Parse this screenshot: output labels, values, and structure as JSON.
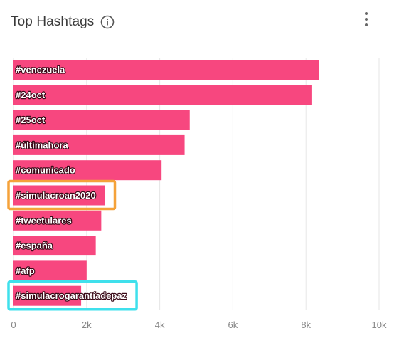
{
  "header": {
    "title": "Top Hashtags"
  },
  "icons": {
    "info": "info-circle-icon",
    "menu": "kebab-menu-icon"
  },
  "colors": {
    "bar": "#f7477f",
    "grid": "#e6e6e6",
    "highlight_orange": "#f5a23a",
    "highlight_cyan": "#3fe0ec"
  },
  "chart_data": {
    "type": "bar",
    "orientation": "horizontal",
    "title": "Top Hashtags",
    "categories": [
      "#venezuela",
      "#24oct",
      "#25oct",
      "#últimahora",
      "#comunicado",
      "#simulacroan2020",
      "#tweetulares",
      "#españa",
      "#afp",
      "#simulacrogarantíadepaz"
    ],
    "values": [
      8350,
      8150,
      4820,
      4680,
      4050,
      2500,
      2400,
      2250,
      2000,
      1850
    ],
    "xlim": [
      0,
      10000
    ],
    "x_ticks": [
      0,
      2000,
      4000,
      6000,
      8000,
      10000
    ],
    "x_tick_labels": [
      "0",
      "2k",
      "4k",
      "6k",
      "8k",
      "10k"
    ],
    "grid": true,
    "highlighted": [
      {
        "category": "#simulacroan2020",
        "color": "#f5a23a"
      },
      {
        "category": "#simulacrogarantíadepaz",
        "color": "#3fe0ec"
      }
    ]
  }
}
